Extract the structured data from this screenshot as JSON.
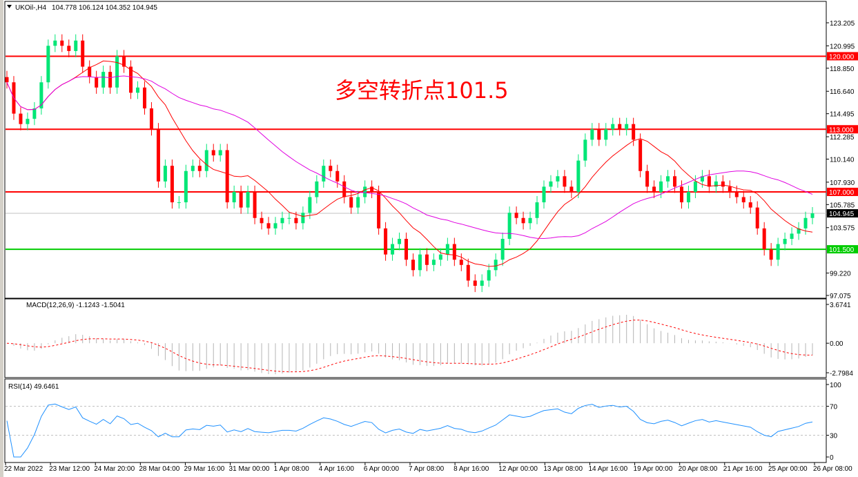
{
  "header": {
    "symbol": "UKOil-,H4",
    "ohlc": "104.778 106.124 104.352 104.945"
  },
  "annotation": "多空转折点101.5",
  "colors": {
    "bull": "#00e676",
    "bear": "#ff0000",
    "ma_fast": "#ff0000",
    "ma_slow": "#e000e0",
    "level_red": "#ff0000",
    "level_green": "#00cc00",
    "rsi": "#1e90ff",
    "macd_hist": "#b4b4b4",
    "macd_signal": "#ff0000"
  },
  "chart_data": [
    {
      "type": "candlestick",
      "title": "UKOil-,H4",
      "ylim": [
        97.075,
        123.205
      ],
      "y_ticks": [
        "123.205",
        "120.995",
        "118.850",
        "116.640",
        "114.495",
        "112.285",
        "110.140",
        "107.930",
        "105.785",
        "103.575",
        "99.220",
        "97.075"
      ],
      "levels": [
        {
          "label": "120.000",
          "value": 120.0,
          "color": "#ff0000"
        },
        {
          "label": "113.000",
          "value": 113.0,
          "color": "#ff0000"
        },
        {
          "label": "107.000",
          "value": 107.0,
          "color": "#ff0000"
        },
        {
          "label": "101.500",
          "value": 101.5,
          "color": "#00cc00"
        }
      ],
      "current_price": "104.945",
      "closes": [
        117.5,
        114.5,
        113.5,
        114,
        115,
        117.5,
        121,
        121.5,
        121,
        120.5,
        121.5,
        119,
        118,
        117,
        118.5,
        117,
        120,
        119,
        116.5,
        117,
        115,
        113,
        108,
        109.5,
        106,
        106,
        109,
        109.5,
        109,
        111,
        110.5,
        111,
        106,
        107,
        105.5,
        107,
        104.5,
        104,
        103.5,
        104,
        104.5,
        104.5,
        104,
        105,
        106.5,
        108,
        109.5,
        109,
        108,
        106.5,
        105.5,
        106.5,
        107.5,
        107,
        103.5,
        101,
        102,
        102.5,
        100.5,
        99.5,
        101,
        100,
        100.5,
        101,
        102,
        100.5,
        100,
        98.5,
        98,
        98.5,
        99.5,
        100.5,
        102.5,
        105,
        104.5,
        104,
        104.5,
        106,
        107.5,
        108,
        108.5,
        107.5,
        107,
        110,
        112,
        113,
        112,
        113,
        113.5,
        113,
        113.5,
        112,
        109,
        107.5,
        107,
        108,
        108.5,
        107.5,
        106,
        107,
        108,
        108.5,
        107.5,
        108,
        107.5,
        107,
        106.5,
        106,
        105.5,
        103.5,
        101.5,
        100.5,
        102,
        102.5,
        103,
        103.5,
        104.5,
        104.945
      ],
      "x_ticks": [
        "22 Mar 2022",
        "23 Mar 12:00",
        "24 Mar 20:00",
        "28 Mar 04:00",
        "29 Mar 16:00",
        "31 Mar 00:00",
        "1 Apr 08:00",
        "4 Apr 16:00",
        "6 Apr 00:00",
        "7 Apr 08:00",
        "8 Apr 16:00",
        "12 Apr 00:00",
        "13 Apr 08:00",
        "14 Apr 16:00",
        "19 Apr 00:00",
        "20 Apr 08:00",
        "21 Apr 16:00",
        "25 Apr 00:00",
        "26 Apr 08:00"
      ]
    },
    {
      "type": "bar",
      "title": "MACD(12,26,9) -1.1243 -1.5041",
      "label": "MACD(12,26,9)",
      "values_text": "-1.1243 -1.5041",
      "ylim": [
        -2.7984,
        3.6741
      ],
      "y_ticks": [
        "3.6741",
        "0.00",
        "-2.7984"
      ]
    },
    {
      "type": "line",
      "title": "RSI(14) 49.6461",
      "label": "RSI(14)",
      "value_text": "49.6461",
      "ylim": [
        0,
        100
      ],
      "y_ticks": [
        "100",
        "70",
        "30",
        "0"
      ]
    }
  ]
}
